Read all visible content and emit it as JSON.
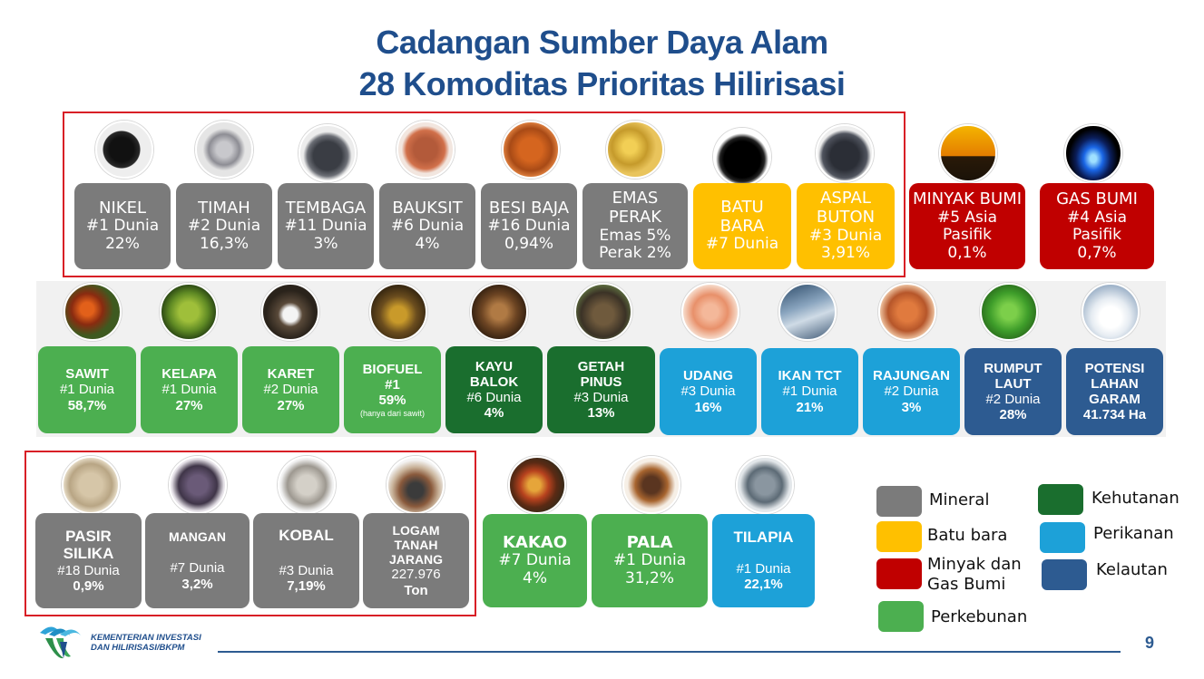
{
  "title": {
    "line1": "Cadangan Sumber Daya Alam",
    "line2": "28 Komoditas Prioritas Hilirisasi"
  },
  "colors": {
    "mineral": "#7b7b7b",
    "batubara": "#ffc000",
    "migas": "#c00000",
    "perkebunan": "#4caf50",
    "kehutanan": "#1a6e2e",
    "perikanan": "#1da1d8",
    "kelautan": "#2d5b91"
  },
  "row1": [
    {
      "name": "NIKEL",
      "l1": "#1 Dunia",
      "l2": "22%"
    },
    {
      "name": "TIMAH",
      "l1": "#2 Dunia",
      "l2": "16,3%"
    },
    {
      "name": "TEMBAGA",
      "l1": "#11 Dunia",
      "l2": "3%"
    },
    {
      "name": "BAUKSIT",
      "l1": "#6 Dunia",
      "l2": "4%"
    },
    {
      "name": "BESI BAJA",
      "l1": "#16 Dunia",
      "l2": "0,94%"
    },
    {
      "name": "EMAS",
      "name2": "PERAK",
      "l1": "Emas 5%",
      "l2": "Perak 2%"
    },
    {
      "name": "BATU",
      "name2": "BARA",
      "l1": "#7 Dunia"
    },
    {
      "name": "ASPAL",
      "name2": "BUTON",
      "l1": "#3 Dunia",
      "l2": "3,91%"
    },
    {
      "name": "MINYAK BUMI",
      "l1": "#5 Asia Pasifik",
      "l2": "0,1%"
    },
    {
      "name": "GAS BUMI",
      "l1": "#4 Asia Pasifik",
      "l2": "0,7%"
    }
  ],
  "row2": [
    {
      "name": "SAWIT",
      "l1": "#1 Dunia",
      "l2": "58,7%"
    },
    {
      "name": "KELAPA",
      "l1": "#1 Dunia",
      "l2": "27%"
    },
    {
      "name": "KARET",
      "l1": "#2 Dunia",
      "l2": "27%"
    },
    {
      "name": "BIOFUEL",
      "l1": "#1",
      "l2": "59%",
      "note": "(hanya dari sawit)"
    },
    {
      "name": "KAYU",
      "name2": "BALOK",
      "l1": "#6 Dunia",
      "l2": "4%"
    },
    {
      "name": "GETAH",
      "name2": "PINUS",
      "l1": "#3 Dunia",
      "l2": "13%"
    },
    {
      "name": "UDANG",
      "l1": "#3 Dunia",
      "l2": "16%"
    },
    {
      "name": "IKAN TCT",
      "l1": "#1 Dunia",
      "l2": "21%"
    },
    {
      "name": "RAJUNGAN",
      "l1": "#2 Dunia",
      "l2": "3%"
    },
    {
      "name": "RUMPUT",
      "name2": "LAUT",
      "l1": "#2 Dunia",
      "l2": "28%"
    },
    {
      "name": "POTENSI",
      "name2": "LAHAN",
      "name3": "GARAM",
      "l2": "41.734 Ha"
    }
  ],
  "row3": [
    {
      "name": "PASIR",
      "name2": "SILIKA",
      "l1": "#18 Dunia",
      "l2": "0,9%"
    },
    {
      "name": "MANGAN",
      "l1": "#7 Dunia",
      "l2": "3,2%"
    },
    {
      "name": "KOBAL",
      "l1": "#3 Dunia",
      "l2": "7,19%"
    },
    {
      "name": "LOGAM",
      "name2": "TANAH",
      "name3": "JARANG",
      "l1": "227.976",
      "l2": "Ton"
    },
    {
      "name": "KAKAO",
      "l1": "#7 Dunia",
      "l2": "4%"
    },
    {
      "name": "PALA",
      "l1": "#1 Dunia",
      "l2": "31,2%"
    },
    {
      "name": "TILAPIA",
      "l1": "#1 Dunia",
      "l2": "22,1%"
    }
  ],
  "legend": {
    "mineral": "Mineral",
    "batubara": "Batu bara",
    "migas1": "Minyak dan",
    "migas2": "Gas Bumi",
    "perkebunan": "Perkebunan",
    "kehutanan": "Kehutanan",
    "perikanan": "Perikanan",
    "kelautan": "Kelautan"
  },
  "footer": {
    "org1": "KEMENTERIAN INVESTASI",
    "org2": "DAN HILIRISASI/BKPM",
    "page": "9"
  },
  "icons": [
    "nickel-ore-icon",
    "tin-icon",
    "copper-ore-icon",
    "bauxite-icon",
    "iron-ore-icon",
    "gold-nugget-icon",
    "coal-icon",
    "asphalt-icon",
    "oil-pump-icon",
    "gas-flame-icon",
    "palm-fruit-icon",
    "coconut-icon",
    "rubber-latex-icon",
    "biofuel-icon",
    "wood-log-icon",
    "pine-resin-icon",
    "shrimp-icon",
    "tuna-icon",
    "crab-icon",
    "seaweed-icon",
    "salt-icon",
    "silica-sand-icon",
    "manganese-icon",
    "cobalt-icon",
    "rare-earth-icon",
    "cocoa-icon",
    "nutmeg-icon",
    "tilapia-icon"
  ]
}
